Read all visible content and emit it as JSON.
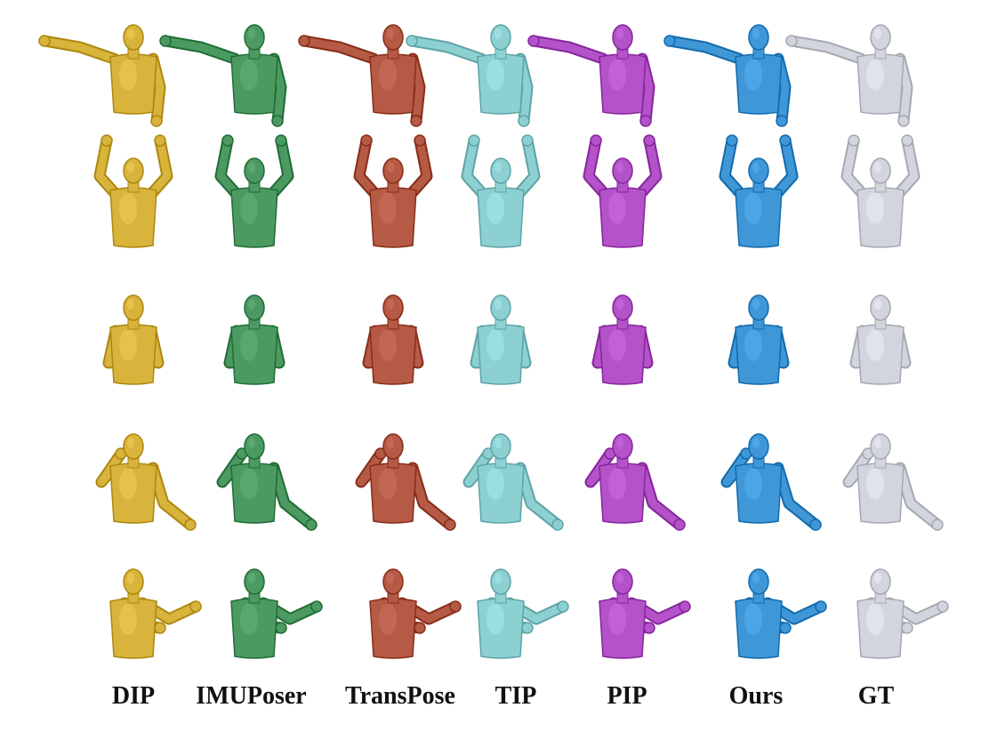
{
  "figure": {
    "methods": [
      {
        "label": "DIP",
        "color": "#D9B43C"
      },
      {
        "label": "IMUPoser",
        "color": "#4C9A62"
      },
      {
        "label": "TransPose",
        "color": "#B45A45"
      },
      {
        "label": "TIP",
        "color": "#8CD0D2"
      },
      {
        "label": "PIP",
        "color": "#B352C9"
      },
      {
        "label": "Ours",
        "color": "#3F97D8"
      },
      {
        "label": "GT",
        "color": "#D2D5DE"
      }
    ],
    "rows": [
      {
        "pose": "one-arm-raised-left"
      },
      {
        "pose": "arms-up"
      },
      {
        "pose": "arms-crossed"
      },
      {
        "pose": "salute-reach"
      },
      {
        "pose": "profile-reach"
      }
    ]
  }
}
